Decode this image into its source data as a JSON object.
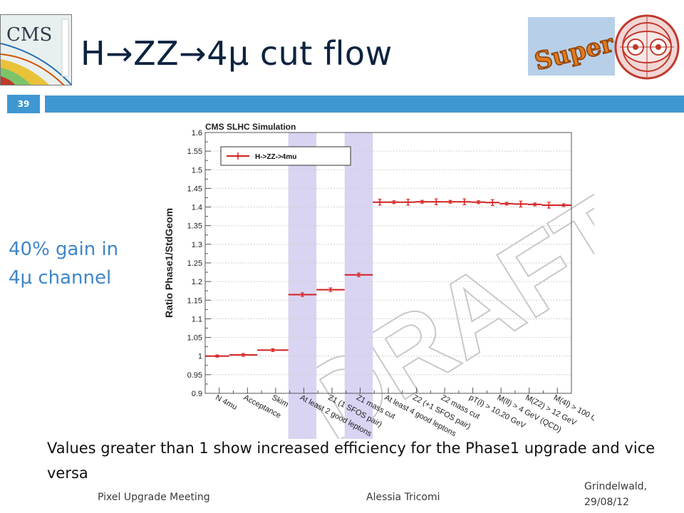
{
  "header": {
    "title": "H→ZZ→4μ cut flow",
    "page_number": "39",
    "accent_color": "#3f97d1",
    "title_color": "#0c2340"
  },
  "logos": {
    "cms": "CMS",
    "super": "Super",
    "lhc_icon": "lhc-cross-section-icon"
  },
  "callout": {
    "line1": "40% gain in",
    "line2": "4μ channel",
    "color": "#3f86c8"
  },
  "caption": "Values greater than 1 show increased efficiency for the Phase1 upgrade and vice versa",
  "footer": {
    "left": "Pixel Upgrade Meeting",
    "middle": "Alessia Tricomi",
    "right_line1": "Grindelwald,",
    "right_line2": "29/08/12"
  },
  "chart_data": {
    "type": "line",
    "title": "CMS SLHC Simulation",
    "xlabel": "",
    "ylabel": "Ratio Phase1/StdGeom",
    "watermark": "DRAFT",
    "ylim": [
      0.9,
      1.6
    ],
    "y_ticks": [
      "0.9",
      "0.95",
      "1",
      "1.05",
      "1.1",
      "1.15",
      "1.2",
      "1.25",
      "1.3",
      "1.35",
      "1.4",
      "1.45",
      "1.5",
      "1.55",
      "1.6"
    ],
    "legend": "top-left",
    "grid": true,
    "categories": [
      "N 4mu",
      "Acceptance",
      "Skim",
      "At least 2 good leptons",
      "Z1 (1 SFOS pair)",
      "Z1 mass cut",
      "At least 4 good leptons",
      "Z2 (+1 SFOS pair)",
      "Z2 mass cut",
      "pT(l) > 10,20 GeV",
      "M(ll) > 4 GeV (QCD)",
      "M(Z2) > 12 GeV",
      "M(4l) > 100 GeV"
    ],
    "bins": [
      {
        "lo": 0,
        "hi": 0.85,
        "value": 1.0,
        "err": 0.003
      },
      {
        "lo": 0.85,
        "hi": 1.85,
        "value": 1.003,
        "err": 0.004
      },
      {
        "lo": 1.85,
        "hi": 2.95,
        "value": 1.016,
        "err": 0.004
      },
      {
        "lo": 2.95,
        "hi": 3.95,
        "value": 1.165,
        "err": 0.005
      },
      {
        "lo": 3.95,
        "hi": 4.95,
        "value": 1.178,
        "err": 0.005
      },
      {
        "lo": 4.95,
        "hi": 5.95,
        "value": 1.218,
        "err": 0.005
      },
      {
        "lo": 5.95,
        "hi": 6.45,
        "value": 1.413,
        "err": 0.008
      },
      {
        "lo": 6.45,
        "hi": 6.95,
        "value": 1.413,
        "err": 0.004
      },
      {
        "lo": 6.95,
        "hi": 7.45,
        "value": 1.413,
        "err": 0.008
      },
      {
        "lo": 7.45,
        "hi": 7.95,
        "value": 1.414,
        "err": 0.004
      },
      {
        "lo": 7.95,
        "hi": 8.45,
        "value": 1.414,
        "err": 0.008
      },
      {
        "lo": 8.45,
        "hi": 8.95,
        "value": 1.414,
        "err": 0.004
      },
      {
        "lo": 8.95,
        "hi": 9.45,
        "value": 1.414,
        "err": 0.008
      },
      {
        "lo": 9.45,
        "hi": 9.95,
        "value": 1.413,
        "err": 0.004
      },
      {
        "lo": 9.95,
        "hi": 10.45,
        "value": 1.412,
        "err": 0.008
      },
      {
        "lo": 10.45,
        "hi": 10.95,
        "value": 1.409,
        "err": 0.004
      },
      {
        "lo": 10.95,
        "hi": 11.45,
        "value": 1.408,
        "err": 0.008
      },
      {
        "lo": 11.45,
        "hi": 11.95,
        "value": 1.407,
        "err": 0.004
      },
      {
        "lo": 11.95,
        "hi": 12.45,
        "value": 1.405,
        "err": 0.008
      },
      {
        "lo": 12.45,
        "hi": 13,
        "value": 1.405,
        "err": 0.004
      }
    ],
    "highlight_bands": [
      [
        2.95,
        3.95
      ],
      [
        4.95,
        5.95
      ]
    ],
    "series": [
      {
        "name": "H->ZZ->4mu",
        "color": "#d21f1f"
      }
    ],
    "band_color": "#d9d4f2"
  }
}
